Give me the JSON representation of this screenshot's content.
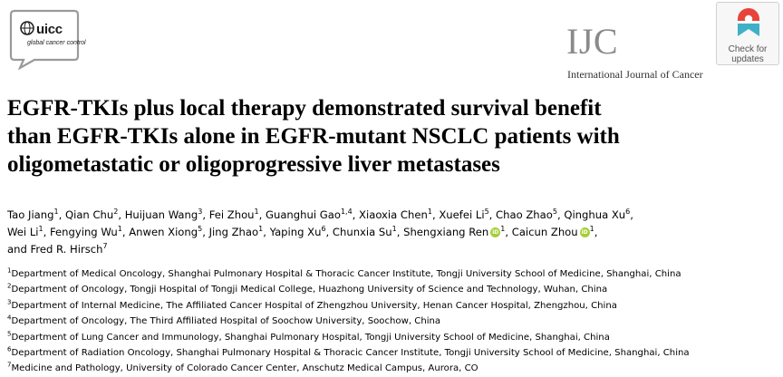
{
  "header": {
    "society_logo": {
      "word": "uicc",
      "tagline": "global cancer control"
    },
    "journal_abbrev": "IJC",
    "journal_name": "International Journal of Cancer",
    "check_updates": {
      "line1": "Check for",
      "line2": "updates",
      "icon": "crossmark-icon"
    }
  },
  "title_lines": [
    "EGFR-TKIs plus local therapy demonstrated survival benefit",
    "than EGFR-TKIs alone in EGFR-mutant NSCLC patients with",
    "oligometastatic or oligoprogressive liver metastases"
  ],
  "authors": [
    {
      "name": "Tao Jiang",
      "aff": "1"
    },
    {
      "name": "Qian Chu",
      "aff": "2"
    },
    {
      "name": "Huijuan Wang",
      "aff": "3"
    },
    {
      "name": "Fei Zhou",
      "aff": "1"
    },
    {
      "name": "Guanghui Gao",
      "aff": "1,4"
    },
    {
      "name": "Xiaoxia Chen",
      "aff": "1"
    },
    {
      "name": "Xuefei Li",
      "aff": "5"
    },
    {
      "name": "Chao Zhao",
      "aff": "5"
    },
    {
      "name": "Qinghua Xu",
      "aff": "6"
    },
    {
      "name": "Wei Li",
      "aff": "1"
    },
    {
      "name": "Fengying Wu",
      "aff": "1"
    },
    {
      "name": "Anwen Xiong",
      "aff": "5"
    },
    {
      "name": "Jing Zhao",
      "aff": "1"
    },
    {
      "name": "Yaping Xu",
      "aff": "6"
    },
    {
      "name": "Chunxia Su",
      "aff": "1"
    },
    {
      "name": "Shengxiang Ren",
      "aff": "1",
      "orcid": true
    },
    {
      "name": "Caicun Zhou",
      "aff": "1",
      "orcid": true
    },
    {
      "name": "Fred R. Hirsch",
      "aff": "7"
    }
  ],
  "author_joiner": "and",
  "author_line_breaks": [
    9,
    17
  ],
  "orcid_icon_label": "iD",
  "affiliations": [
    {
      "num": "1",
      "text": "Department of Medical Oncology, Shanghai Pulmonary Hospital & Thoracic Cancer Institute, Tongji University School of Medicine, Shanghai, China"
    },
    {
      "num": "2",
      "text": "Department of Oncology, Tongji Hospital of Tongji Medical College, Huazhong University of Science and Technology, Wuhan, China"
    },
    {
      "num": "3",
      "text": "Department of Internal Medicine, The Affiliated Cancer Hospital of Zhengzhou University, Henan Cancer Hospital, Zhengzhou, China"
    },
    {
      "num": "4",
      "text": "Department of Oncology, The Third Affiliated Hospital of Soochow University, Soochow, China"
    },
    {
      "num": "5",
      "text": "Department of Lung Cancer and Immunology, Shanghai Pulmonary Hospital, Tongji University School of Medicine, Shanghai, China"
    },
    {
      "num": "6",
      "text": "Department of Radiation Oncology, Shanghai Pulmonary Hospital & Thoracic Cancer Institute, Tongji University School of Medicine, Shanghai, China"
    },
    {
      "num": "7",
      "text": "Medicine and Pathology, University of Colorado Cancer Center, Anschutz Medical Campus, Aurora, CO"
    }
  ],
  "colors": {
    "orcid": "#a6ce39",
    "journal_gray": "#8a8a8a",
    "crossmark_red": "#e8443a",
    "crossmark_teal": "#3eb1c8"
  }
}
